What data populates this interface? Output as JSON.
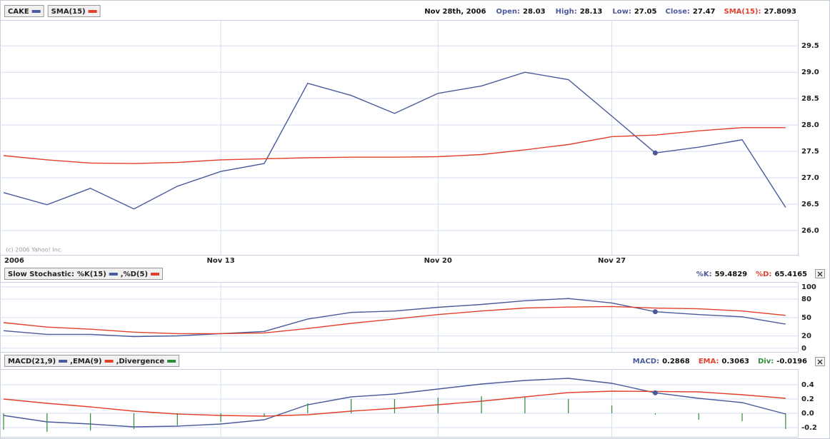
{
  "chart_data": [
    {
      "type": "line",
      "legend_style": "separate",
      "selected_index": 15,
      "categories": [
        "2006",
        null,
        null,
        null,
        null,
        "Nov 13",
        null,
        null,
        null,
        null,
        "Nov 20",
        null,
        null,
        null,
        "Nov 27",
        null,
        null,
        null,
        null
      ],
      "annotation": "(c) 2006 Yahoo! Inc.",
      "readout": {
        "date": "Nov 28th, 2006",
        "items": [
          {
            "label": "Open:",
            "value": 28.03
          },
          {
            "label": "High:",
            "value": 28.13
          },
          {
            "label": "Low:",
            "value": 27.05
          }
        ]
      },
      "series": [
        {
          "name": "CAKE",
          "readout_label": "Close:",
          "color": "#4a5a9c",
          "values": [
            26.72,
            26.49,
            26.8,
            26.41,
            26.84,
            27.12,
            27.27,
            28.79,
            28.56,
            28.22,
            28.6,
            28.74,
            29.0,
            28.86,
            28.17,
            27.47,
            27.58,
            27.72,
            26.44
          ]
        },
        {
          "name": "SMA(15)",
          "readout_label": "SMA(15):",
          "color": "#e0402c",
          "values": [
            27.42,
            27.34,
            27.28,
            27.27,
            27.29,
            27.34,
            27.36,
            27.38,
            27.39,
            27.39,
            27.4,
            27.44,
            27.53,
            27.63,
            27.78,
            27.8093,
            27.89,
            27.95,
            27.95
          ]
        }
      ],
      "ylim": [
        25.54,
        29.99
      ],
      "yticks": [
        {
          "value": 26,
          "label": "26.0"
        },
        26.5,
        {
          "value": 27,
          "label": "27.0"
        },
        27.5,
        {
          "value": 28,
          "label": "28.0"
        },
        28.5,
        {
          "value": 29,
          "label": "29.0"
        },
        29.5
      ],
      "grid": true
    },
    {
      "type": "line",
      "legend_style": "joined",
      "selected_index": 15,
      "title": "Slow Stochastic:",
      "series": [
        {
          "name": "%K(15)",
          "readout_label": "%K:",
          "color": "#4a5a9c",
          "values": [
            28.6,
            22.6,
            22.6,
            19.0,
            20.2,
            23.8,
            27.4,
            47.6,
            58.3,
            60.7,
            66.7,
            71.4,
            77.4,
            81.0,
            73.8,
            59.4829,
            54.8,
            51.2,
            39.3
          ]
        },
        {
          "name": ",%D(5)",
          "readout_label": "%D:",
          "color": "#e0402c",
          "values": [
            41.7,
            34.5,
            31.0,
            26.2,
            23.8,
            23.8,
            25.0,
            32.1,
            40.5,
            47.6,
            54.8,
            60.7,
            65.5,
            67.0,
            68.0,
            65.4165,
            64.3,
            60.7,
            53.6
          ]
        }
      ],
      "ylim": [
        -6,
        108
      ],
      "yticks": [
        0,
        20,
        50,
        80,
        100
      ],
      "grid": true
    },
    {
      "type": "line",
      "legend_style": "joined",
      "selected_index": 15,
      "series": [
        {
          "name": "MACD(21,9)",
          "readout_label": "MACD:",
          "color": "#4a5a9c",
          "values": [
            -0.03,
            -0.12,
            -0.15,
            -0.19,
            -0.18,
            -0.15,
            -0.09,
            0.12,
            0.23,
            0.27,
            0.34,
            0.41,
            0.46,
            0.49,
            0.42,
            0.2868,
            0.21,
            0.15,
            -0.01
          ]
        },
        {
          "name": ",EMA(9)",
          "readout_label": "EMA:",
          "color": "#e0402c",
          "values": [
            0.2,
            0.14,
            0.09,
            0.03,
            -0.01,
            -0.03,
            -0.04,
            -0.02,
            0.03,
            0.07,
            0.12,
            0.17,
            0.23,
            0.29,
            0.31,
            0.3063,
            0.3,
            0.26,
            0.21
          ]
        },
        {
          "name": ",Divergence",
          "readout_label": "Div:",
          "type": "bar",
          "color": "#2e8b3a",
          "values": [
            -0.23,
            -0.26,
            -0.24,
            -0.22,
            -0.17,
            -0.12,
            -0.05,
            0.14,
            0.2,
            0.2,
            0.22,
            0.24,
            0.23,
            0.2,
            0.11,
            -0.0196,
            -0.09,
            -0.11,
            -0.22
          ]
        }
      ],
      "ylim": [
        -0.33,
        0.62
      ],
      "yticks": [
        0.4,
        0.2,
        {
          "value": 0,
          "label": "0.0"
        },
        -0.2
      ],
      "grid": true
    }
  ]
}
